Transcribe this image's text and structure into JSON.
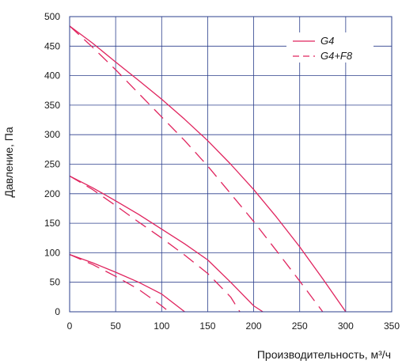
{
  "chart_data": {
    "type": "line",
    "xlabel": "Производительность, м³/ч",
    "ylabel": "Давление, Па",
    "xlim": [
      0,
      350
    ],
    "ylim": [
      0,
      500
    ],
    "x_ticks": [
      0,
      50,
      100,
      150,
      200,
      250,
      300,
      350
    ],
    "y_ticks": [
      0,
      50,
      100,
      150,
      200,
      250,
      300,
      350,
      400,
      450,
      500
    ],
    "grid": true,
    "legend_position": "top-right",
    "line_color": "#e0245e",
    "legend": [
      {
        "label": "G4",
        "style": "solid"
      },
      {
        "label": "G4+F8",
        "style": "dashed"
      }
    ],
    "series": [
      {
        "legend": "G4",
        "style": "solid",
        "x": [
          0,
          25,
          50,
          75,
          100,
          125,
          150,
          175,
          200,
          225,
          250,
          275,
          300
        ],
        "y": [
          484,
          455,
          423,
          392,
          360,
          326,
          290,
          250,
          207,
          160,
          110,
          56,
          0
        ]
      },
      {
        "legend": "G4+F8",
        "style": "dashed",
        "x": [
          0,
          25,
          50,
          75,
          100,
          125,
          150,
          175,
          200,
          225,
          250,
          275
        ],
        "y": [
          484,
          448,
          410,
          370,
          330,
          290,
          247,
          200,
          153,
          103,
          52,
          0
        ]
      },
      {
        "legend": "G4",
        "style": "solid",
        "x": [
          0,
          25,
          50,
          75,
          100,
          125,
          150,
          175,
          200,
          210
        ],
        "y": [
          230,
          210,
          188,
          165,
          140,
          115,
          88,
          50,
          10,
          0
        ]
      },
      {
        "legend": "G4+F8",
        "style": "dashed",
        "x": [
          0,
          25,
          50,
          75,
          100,
          125,
          150,
          175,
          185
        ],
        "y": [
          230,
          207,
          180,
          152,
          125,
          96,
          65,
          25,
          0
        ]
      },
      {
        "legend": "G4",
        "style": "solid",
        "x": [
          0,
          25,
          50,
          75,
          100,
          125
        ],
        "y": [
          97,
          83,
          67,
          50,
          30,
          0
        ]
      },
      {
        "legend": "G4+F8",
        "style": "dashed",
        "x": [
          0,
          25,
          50,
          75,
          100,
          108
        ],
        "y": [
          97,
          80,
          60,
          38,
          10,
          0
        ]
      }
    ]
  }
}
